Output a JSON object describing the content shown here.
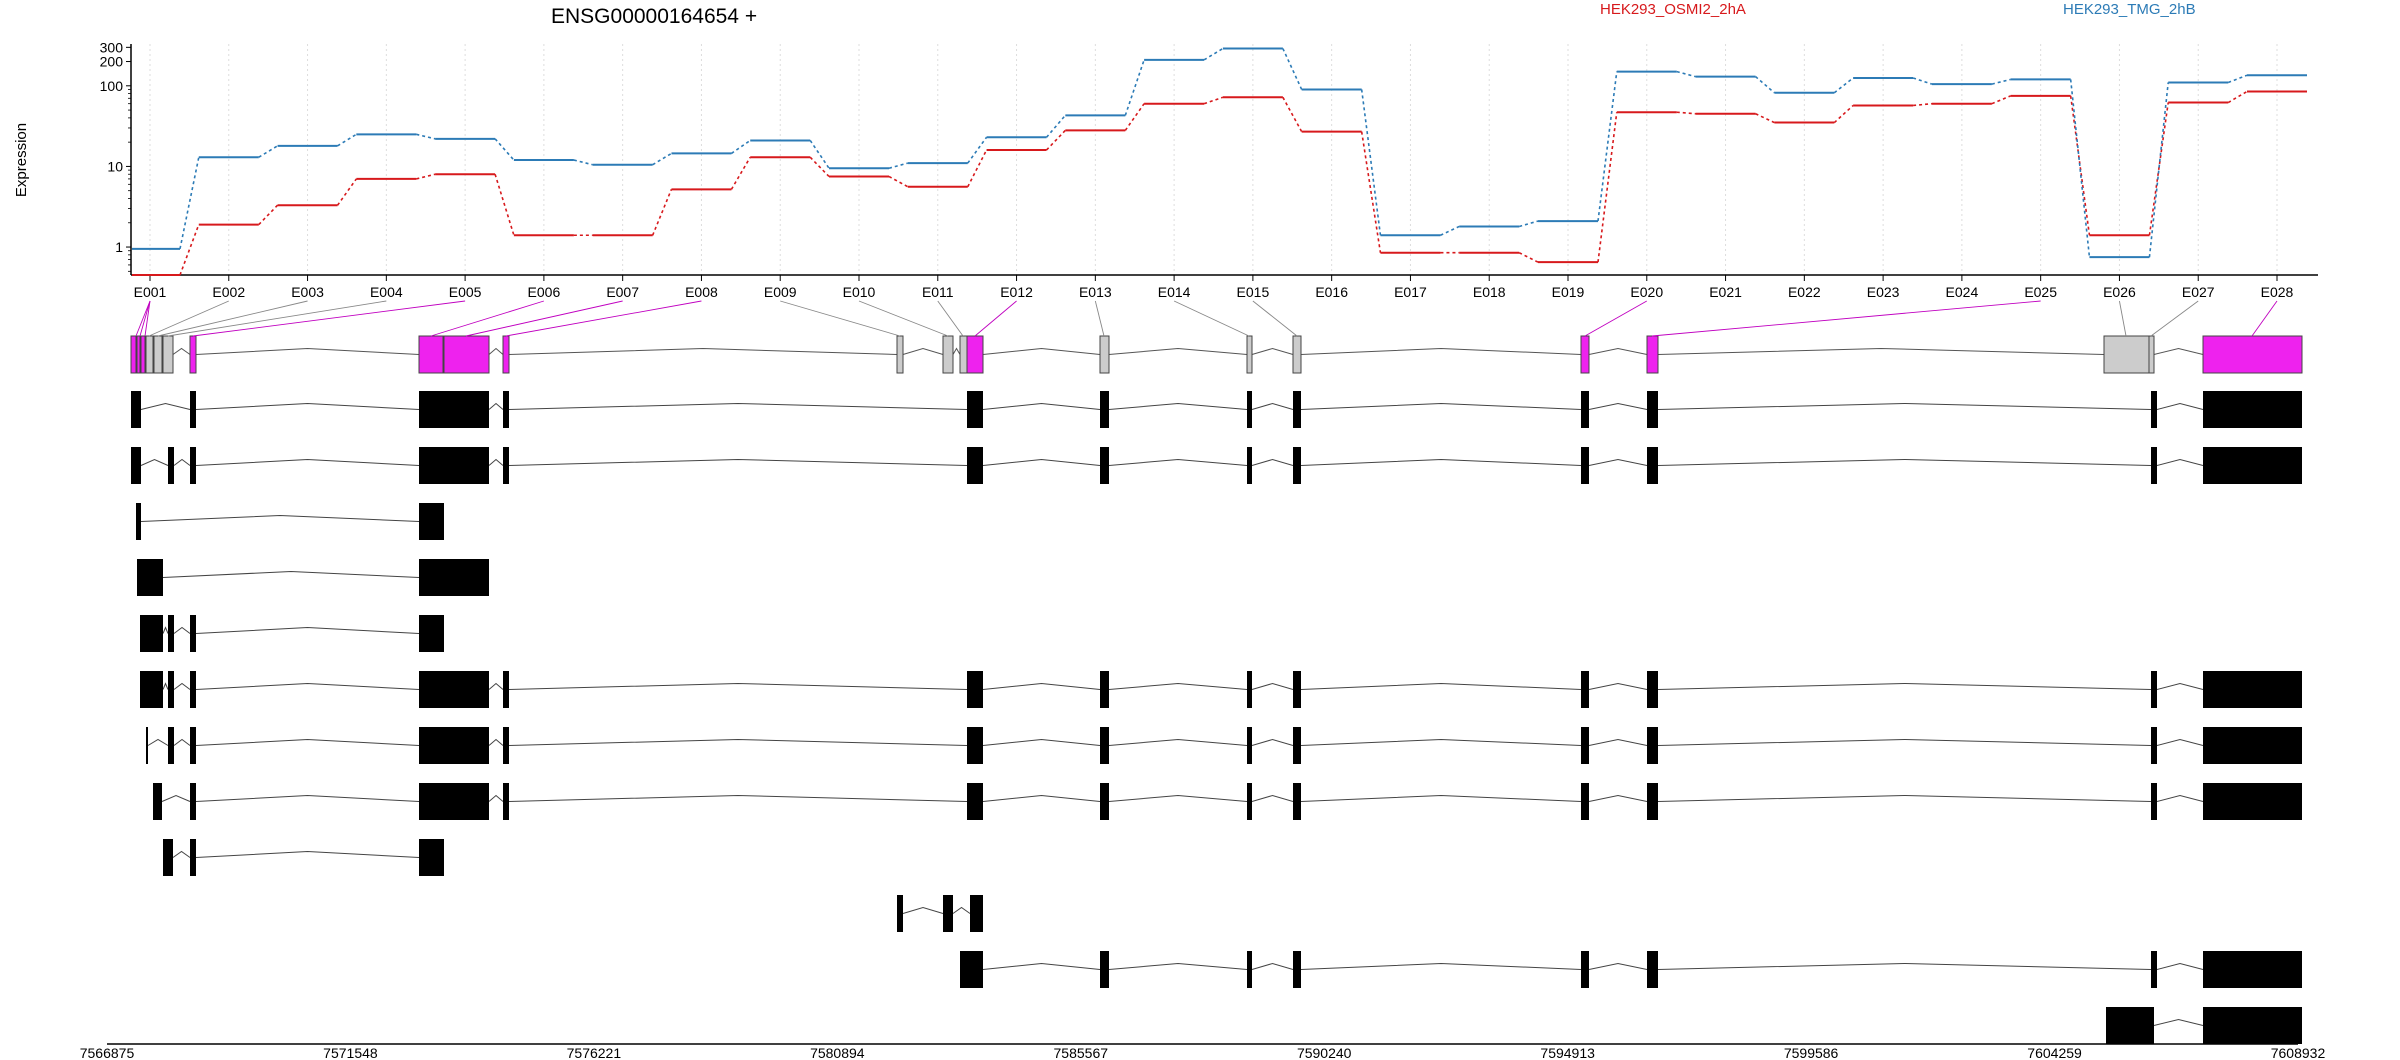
{
  "chart_data": {
    "type": "line",
    "title": "ENSG00000164654 +",
    "ylabel": "Expression",
    "y_scale": "log",
    "ylim": [
      0.45,
      330
    ],
    "y_ticks": [
      1,
      10,
      100,
      200,
      300
    ],
    "y_tick_labels": [
      "1",
      "10",
      "100",
      "200",
      "300"
    ],
    "grid": "vertical dotted lines at each exon",
    "legend_placement": "top",
    "categories": [
      "E001",
      "E002",
      "E003",
      "E004",
      "E005",
      "E006",
      "E007",
      "E008",
      "E009",
      "E010",
      "E011",
      "E012",
      "E013",
      "E014",
      "E015",
      "E016",
      "E017",
      "E018",
      "E019",
      "E020",
      "E021",
      "E022",
      "E023",
      "E024",
      "E025",
      "E026",
      "E027",
      "E028"
    ],
    "series": [
      {
        "name": "HEK293_OSMI2_2hA",
        "color": "#d7191c",
        "values": [
          0.45,
          1.9,
          3.3,
          7.0,
          8.0,
          1.4,
          1.4,
          5.2,
          13,
          7.5,
          5.6,
          16,
          28,
          60,
          72,
          27,
          0.85,
          0.85,
          0.65,
          47,
          45,
          35,
          57,
          60,
          75,
          1.4,
          62,
          85
        ]
      },
      {
        "name": "HEK293_TMG_2hB",
        "color": "#2c7bb6",
        "values": [
          0.95,
          13,
          18,
          25,
          22,
          12,
          10.5,
          14.5,
          21,
          9.5,
          11,
          23,
          43,
          210,
          290,
          90,
          1.4,
          1.8,
          2.1,
          150,
          130,
          82,
          125,
          105,
          120,
          0.75,
          110,
          135
        ]
      }
    ],
    "genomic_ticks": [
      "7566875",
      "7571548",
      "7576221",
      "7580894",
      "7585567",
      "7590240",
      "7594913",
      "7599586",
      "7604259",
      "7608932"
    ],
    "exon_highlight_color": "#ee22ee",
    "exon_default_color": "#cccccc"
  }
}
